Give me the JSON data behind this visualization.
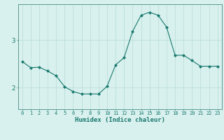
{
  "x": [
    0,
    1,
    2,
    3,
    4,
    5,
    6,
    7,
    8,
    9,
    10,
    11,
    12,
    13,
    14,
    15,
    16,
    17,
    18,
    19,
    20,
    21,
    22,
    23
  ],
  "y": [
    2.55,
    2.42,
    2.43,
    2.35,
    2.25,
    2.02,
    1.92,
    1.87,
    1.87,
    1.87,
    2.03,
    2.48,
    2.63,
    3.18,
    3.52,
    3.58,
    3.52,
    3.27,
    2.68,
    2.68,
    2.57,
    2.45,
    2.45,
    2.45
  ],
  "line_color": "#1a7a6e",
  "marker": "D",
  "marker_size": 2.0,
  "bg_color": "#d8f0ee",
  "grid_color": "#b8dcd8",
  "axis_color": "#5a9a90",
  "xlabel": "Humidex (Indice chaleur)",
  "ylim": [
    1.55,
    3.75
  ],
  "yticks": [
    2,
    3
  ],
  "xlim": [
    -0.5,
    23.5
  ],
  "xtick_fontsize": 5.0,
  "ytick_fontsize": 6.5,
  "xlabel_fontsize": 6.5
}
